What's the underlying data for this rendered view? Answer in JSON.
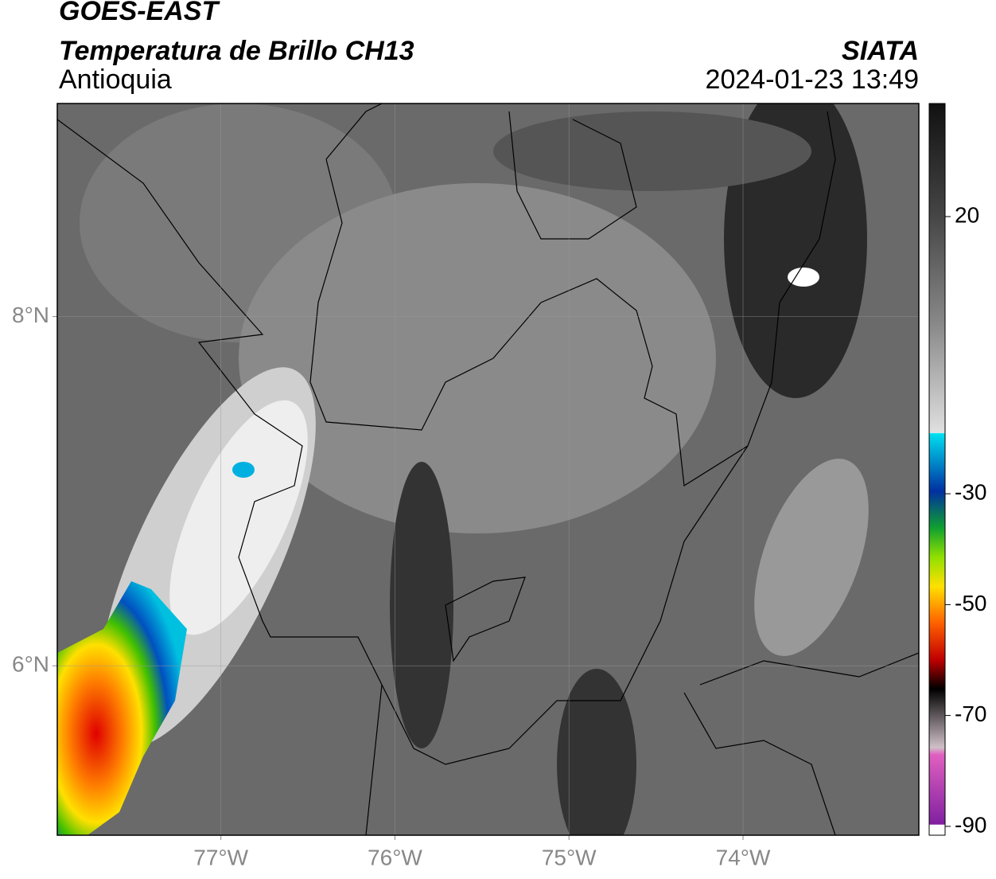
{
  "header": {
    "title": "GOES-EAST",
    "subtitle": "Temperatura de Brillo CH13",
    "region": "Antioquia",
    "source": "SIATA",
    "timestamp": "2024-01-23 13:49"
  },
  "map": {
    "xlim": [
      -77.94,
      -72.99
    ],
    "ylim": [
      5.03,
      9.22
    ],
    "xticks": [
      {
        "value": -77,
        "label": "77°W"
      },
      {
        "value": -76,
        "label": "76°W"
      },
      {
        "value": -75,
        "label": "75°W"
      },
      {
        "value": -74,
        "label": "74°W"
      }
    ],
    "yticks": [
      {
        "value": 6,
        "label": "6°N"
      },
      {
        "value": 8,
        "label": "8°N"
      }
    ]
  },
  "colorbar": {
    "ylim": [
      -91.6,
      40.4
    ],
    "ticks": [
      20,
      -30,
      -50,
      -70,
      -90
    ]
  }
}
